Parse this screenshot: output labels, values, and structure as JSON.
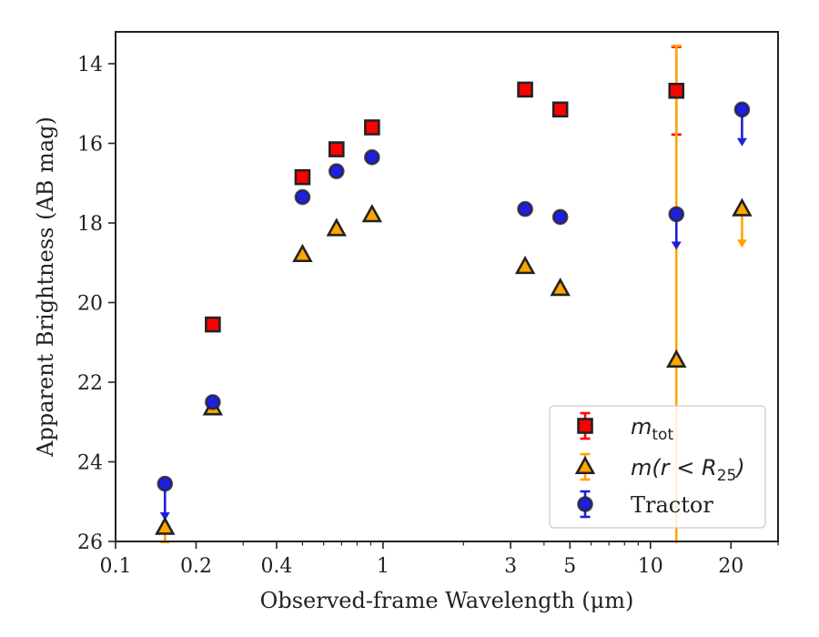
{
  "colors": {
    "mtot": "#ff0000",
    "mr25": "#ffa500",
    "tractor": "#1f1fdd",
    "marker_edge": "#222222",
    "axes": "#222222"
  },
  "chart_data": {
    "type": "scatter",
    "xlabel": "Observed-frame Wavelength (μm)",
    "ylabel": "Apparent Brightness (AB mag)",
    "xscale": "log",
    "xlim": [
      0.1,
      30
    ],
    "ylim": [
      26,
      13.2
    ],
    "y_inverted": true,
    "xticks": [
      {
        "value": 0.1,
        "label": "0.1"
      },
      {
        "value": 0.2,
        "label": "0.2"
      },
      {
        "value": 0.4,
        "label": "0.4"
      },
      {
        "value": 1,
        "label": "1"
      },
      {
        "value": 3,
        "label": "3"
      },
      {
        "value": 5,
        "label": "5"
      },
      {
        "value": 10,
        "label": "10"
      },
      {
        "value": 20,
        "label": "20"
      }
    ],
    "yticks": [
      {
        "value": 14,
        "label": "14"
      },
      {
        "value": 16,
        "label": "16"
      },
      {
        "value": 18,
        "label": "18"
      },
      {
        "value": 20,
        "label": "20"
      },
      {
        "value": 22,
        "label": "22"
      },
      {
        "value": 24,
        "label": "24"
      },
      {
        "value": 26,
        "label": "26"
      }
    ],
    "grid": false,
    "legend_position": "bottom-right",
    "legend": [
      {
        "main": "m",
        "sub": "tot",
        "math": true
      },
      {
        "main": "m(r < R",
        "sub": "25",
        "suffix": ")",
        "math": true
      },
      {
        "main": "Tractor",
        "math": false
      }
    ],
    "series": [
      {
        "key": "mtot",
        "marker": "square",
        "points": [
          {
            "x": 0.231,
            "y": 20.55
          },
          {
            "x": 0.5,
            "y": 16.85
          },
          {
            "x": 0.67,
            "y": 16.15
          },
          {
            "x": 0.91,
            "y": 15.6
          },
          {
            "x": 3.4,
            "y": 14.65
          },
          {
            "x": 4.6,
            "y": 15.15
          },
          {
            "x": 12.5,
            "y": 14.68,
            "yerr": 1.1
          }
        ]
      },
      {
        "key": "mr25",
        "marker": "triangle",
        "points": [
          {
            "x": 0.153,
            "y": 25.65,
            "upper_limit": true,
            "arrow_to": 26.2
          },
          {
            "x": 0.231,
            "y": 22.65
          },
          {
            "x": 0.5,
            "y": 18.8
          },
          {
            "x": 0.67,
            "y": 18.15
          },
          {
            "x": 0.91,
            "y": 17.8
          },
          {
            "x": 3.4,
            "y": 19.1
          },
          {
            "x": 4.6,
            "y": 19.65
          },
          {
            "x": 12.5,
            "y": 21.45,
            "yerr_low": 7.9,
            "yerr_high": 5.0
          },
          {
            "x": 22.0,
            "y": 17.65,
            "upper_limit": true,
            "arrow_to": 18.6
          }
        ]
      },
      {
        "key": "tractor",
        "marker": "circle",
        "points": [
          {
            "x": 0.153,
            "y": 24.55,
            "upper_limit": true,
            "arrow_to": 25.45
          },
          {
            "x": 0.231,
            "y": 22.5
          },
          {
            "x": 0.5,
            "y": 17.35
          },
          {
            "x": 0.67,
            "y": 16.7
          },
          {
            "x": 0.91,
            "y": 16.35
          },
          {
            "x": 3.4,
            "y": 17.65
          },
          {
            "x": 4.6,
            "y": 17.85
          },
          {
            "x": 12.5,
            "y": 17.78,
            "upper_limit": true,
            "arrow_to": 18.65
          },
          {
            "x": 22.0,
            "y": 15.15,
            "upper_limit": true,
            "arrow_to": 16.05
          }
        ]
      }
    ]
  }
}
